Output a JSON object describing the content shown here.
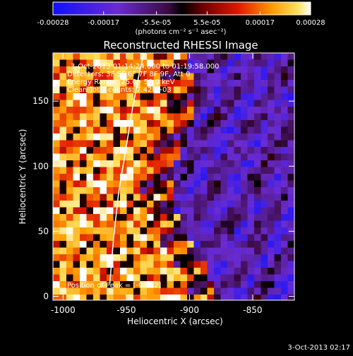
{
  "chart_data": {
    "type": "heatmap",
    "title": "Reconstructed RHESSI Image",
    "xlabel": "Heliocentric X (arcsec)",
    "ylabel": "Heliocentric Y (arcsec)",
    "xlim": [
      -1008,
      -817
    ],
    "ylim": [
      -3,
      187
    ],
    "x_ticks": [
      -1000,
      -950,
      -900,
      -850
    ],
    "x_tick_labels": [
      "-1000",
      "-950",
      "-900",
      "-850"
    ],
    "y_ticks": [
      0,
      50,
      100,
      150
    ],
    "y_tick_labels": [
      "0",
      "50",
      "100",
      "150"
    ],
    "grid": false,
    "limb": [
      [
        -963,
        10
      ],
      [
        -960,
        45
      ],
      [
        -956,
        80
      ],
      [
        -950,
        115
      ],
      [
        -945,
        145
      ],
      [
        -940,
        170
      ],
      [
        -936,
        187
      ]
    ],
    "annotations": [
      "3-Oct-2013 01:14:24.000 to 01:19:58.000",
      "Detectors: 3F 5F 6F 7F 8F 9F, Att 0",
      "Energy Range: 25.0 - 50.0 keV",
      "Clean     Total counts: 7.42E+03"
    ],
    "peak_label": "Position of Peak = [-949,2]",
    "colorbar": {
      "min": -0.00028,
      "max": 0.00028,
      "tick_values": [
        -0.00028,
        -0.00017,
        -5.5e-05,
        5.5e-05,
        0.00017,
        0.00028
      ],
      "tick_labels": [
        "-0.00028",
        "-0.00017",
        "-5.5e-05",
        "5.5e-05",
        "0.00017",
        "0.00028"
      ],
      "unit_label": "(photons cm⁻² s⁻¹ asec⁻²)"
    }
  },
  "footer_timestamp": "3-Oct-2013 02:17"
}
